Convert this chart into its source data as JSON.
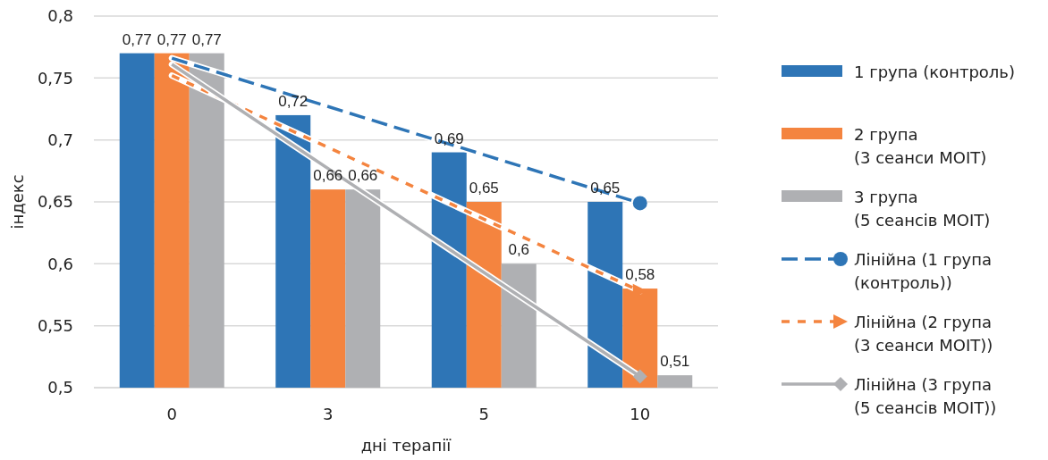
{
  "chart_data": {
    "type": "bar",
    "xlabel": "дні терапії",
    "ylabel": "індекс",
    "categories": [
      "0",
      "3",
      "5",
      "10"
    ],
    "ylim": [
      0.5,
      0.8
    ],
    "yticks": [
      {
        "value": 0.5,
        "label": "0,5"
      },
      {
        "value": 0.55,
        "label": "0,55"
      },
      {
        "value": 0.6,
        "label": "0,6"
      },
      {
        "value": 0.65,
        "label": "0,65"
      },
      {
        "value": 0.7,
        "label": "0,7"
      },
      {
        "value": 0.75,
        "label": "0,75"
      },
      {
        "value": 0.8,
        "label": "0,8"
      }
    ],
    "grid": "y",
    "legend": "right",
    "series": [
      {
        "name": "1 група (контроль)",
        "color": "#2e75b6",
        "values": [
          0.77,
          0.72,
          0.69,
          0.65
        ],
        "value_labels": [
          "0,77",
          "0,72",
          "0,69",
          "0,65"
        ]
      },
      {
        "name": "2 група (3 сеанси MOIT)",
        "color": "#f4843f",
        "values": [
          0.77,
          0.66,
          0.65,
          0.58
        ],
        "value_labels": [
          "0,77",
          "0,66",
          "0,65",
          "0,58"
        ]
      },
      {
        "name": "3 група (5 сеансів MOIT)",
        "color": "#afb0b3",
        "values": [
          0.77,
          0.66,
          0.6,
          0.51
        ],
        "value_labels": [
          "0,77",
          "0,66",
          "0,6",
          "0,51"
        ]
      },
      {
        "name": "Лінійна (1 група (контроль))",
        "type": "line",
        "x": [
          "0",
          "10"
        ],
        "color": "#2e75b6",
        "values": [
          0.766,
          0.649
        ],
        "line_style": "dashed",
        "marker": "circle"
      },
      {
        "name": "Лінійна (2 група (3 сеанси MOIT))",
        "type": "line",
        "x": [
          "0",
          "10"
        ],
        "color": "#f4843f",
        "values": [
          0.752,
          0.578
        ],
        "line_style": "dotted",
        "marker": "triangle"
      },
      {
        "name": "Лінійна (3 група (5 сеансів MOIT))",
        "type": "line",
        "x": [
          "0",
          "10"
        ],
        "color": "#afb0b3",
        "values": [
          0.761,
          0.509
        ],
        "line_style": "solid",
        "marker": "diamond"
      }
    ]
  }
}
